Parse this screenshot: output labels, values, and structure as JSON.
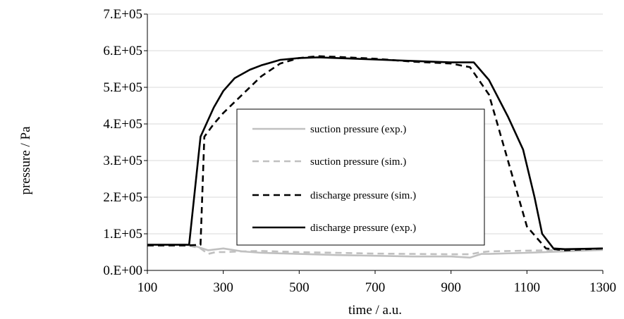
{
  "chart_data": {
    "type": "line",
    "title": "",
    "xlabel": "time / a.u.",
    "ylabel": "pressure / Pa",
    "xlim": [
      100,
      1300
    ],
    "ylim": [
      0,
      700000
    ],
    "x_ticks": [
      100,
      300,
      500,
      700,
      900,
      1100,
      1300
    ],
    "x_tick_labels": [
      "100",
      "300",
      "500",
      "700",
      "900",
      "1100",
      "1300"
    ],
    "y_ticks": [
      0,
      100000,
      200000,
      300000,
      400000,
      500000,
      600000,
      700000
    ],
    "y_tick_labels": [
      "0.E+00",
      "1.E+05",
      "2.E+05",
      "3.E+05",
      "4.E+05",
      "5.E+05",
      "6.E+05",
      "7.E+05"
    ],
    "grid": "horizontal",
    "legend_position": "center",
    "series": [
      {
        "name": "suction pressure (exp.)",
        "color": "#c0c0c0",
        "dash": "solid",
        "x": [
          100,
          200,
          230,
          260,
          300,
          350,
          400,
          500,
          600,
          700,
          800,
          900,
          950,
          980,
          1000,
          1100,
          1200,
          1300
        ],
        "y": [
          70000,
          70000,
          65000,
          55000,
          60000,
          52000,
          48000,
          45000,
          42000,
          40000,
          38000,
          38000,
          35000,
          45000,
          45000,
          48000,
          52000,
          56000
        ]
      },
      {
        "name": "suction pressure (sim.)",
        "color": "#c0c0c0",
        "dash": "dashed",
        "x": [
          100,
          200,
          240,
          260,
          280,
          300,
          350,
          400,
          500,
          600,
          700,
          800,
          900,
          950,
          980,
          1000,
          1100,
          1200,
          1300
        ],
        "y": [
          70000,
          70000,
          60000,
          45000,
          50000,
          50000,
          52000,
          53000,
          50000,
          48000,
          46000,
          45000,
          44000,
          44000,
          50000,
          52000,
          54000,
          56000,
          58000
        ]
      },
      {
        "name": "discharge pressure (sim.)",
        "color": "#000000",
        "dash": "dashed",
        "x": [
          100,
          200,
          240,
          250,
          275,
          300,
          350,
          400,
          450,
          500,
          550,
          600,
          700,
          800,
          900,
          950,
          1000,
          1050,
          1100,
          1150,
          1200,
          1300
        ],
        "y": [
          68000,
          68000,
          70000,
          365000,
          400000,
          430000,
          480000,
          530000,
          565000,
          580000,
          585000,
          583000,
          578000,
          570000,
          565000,
          555000,
          480000,
          300000,
          120000,
          60000,
          55000,
          60000
        ]
      },
      {
        "name": "discharge pressure (exp.)",
        "color": "#000000",
        "dash": "solid",
        "x": [
          100,
          210,
          240,
          275,
          300,
          330,
          370,
          400,
          450,
          500,
          550,
          600,
          700,
          800,
          900,
          960,
          1000,
          1050,
          1090,
          1120,
          1140,
          1170,
          1200,
          1300
        ],
        "y": [
          70000,
          70000,
          365000,
          445000,
          490000,
          525000,
          548000,
          560000,
          575000,
          580000,
          582000,
          580000,
          576000,
          572000,
          568000,
          568000,
          520000,
          420000,
          330000,
          200000,
          100000,
          60000,
          58000,
          60000
        ]
      }
    ]
  }
}
